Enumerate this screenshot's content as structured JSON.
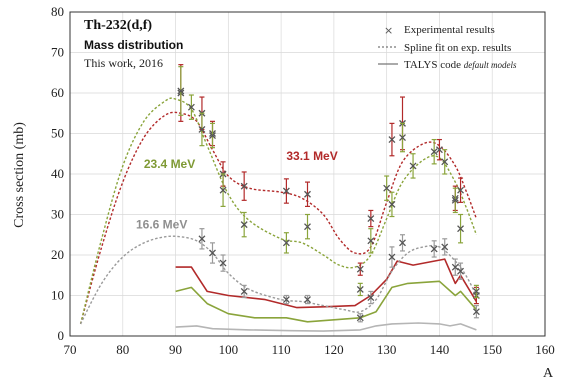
{
  "chart_data": {
    "type": "line",
    "title": "Th-232(d,f)",
    "subtitle": "Mass distribution",
    "note": "This work, 2016",
    "xlabel": "A",
    "ylabel": "Cross section (mb)",
    "xlim": [
      70,
      160
    ],
    "ylim": [
      0,
      80
    ],
    "xticks": [
      70,
      80,
      90,
      100,
      110,
      120,
      130,
      140,
      150,
      160
    ],
    "yticks": [
      0,
      10,
      20,
      30,
      40,
      50,
      60,
      70,
      80
    ],
    "grid": true,
    "legend_position": "top-right",
    "legend": [
      {
        "label": "Experimental results",
        "style": "cross"
      },
      {
        "label": "Spline fit on exp. results",
        "style": "dashed"
      },
      {
        "label": "TALYS code",
        "suffix": "default models",
        "style": "solid"
      }
    ],
    "annotations": [
      {
        "text": "33.1 MeV",
        "x": 111,
        "y": 43.5,
        "color": "#b22a2a"
      },
      {
        "text": "23.4 MeV",
        "x": 84,
        "y": 41.5,
        "color": "#7f9a35"
      },
      {
        "text": "16.6 MeV",
        "x": 82.5,
        "y": 26.5,
        "color": "#8f8f8f"
      }
    ],
    "colors": {
      "red": "#b22a2a",
      "green": "#8aa43b",
      "gray": "#9a9a9a",
      "talys_gray": "#b5b5b5"
    },
    "series": [
      {
        "name": "33.1 MeV",
        "color": "#b22a2a",
        "experimental": [
          [
            91,
            60,
            7
          ],
          [
            95,
            55,
            4
          ],
          [
            97,
            50,
            3
          ],
          [
            99,
            40,
            3
          ],
          [
            103,
            37,
            3.5
          ],
          [
            111,
            35.8,
            3
          ],
          [
            115,
            35,
            3
          ],
          [
            125,
            16.5,
            1.5
          ],
          [
            127,
            29,
            2
          ],
          [
            131,
            48.5,
            4
          ],
          [
            133,
            52.5,
            6.5
          ],
          [
            140,
            46,
            2.5
          ],
          [
            143,
            34,
            3
          ],
          [
            144,
            36,
            3
          ],
          [
            147,
            10,
            2
          ]
        ],
        "spline": [
          [
            72,
            3
          ],
          [
            76,
            22
          ],
          [
            80,
            38
          ],
          [
            84,
            49
          ],
          [
            88,
            54.5
          ],
          [
            91,
            55
          ],
          [
            94,
            53
          ],
          [
            97,
            46
          ],
          [
            100,
            39.5
          ],
          [
            104,
            36.5
          ],
          [
            110,
            35.5
          ],
          [
            114,
            34
          ],
          [
            118,
            30
          ],
          [
            121,
            24
          ],
          [
            124,
            20.5
          ],
          [
            127,
            22
          ],
          [
            130,
            33
          ],
          [
            133,
            43
          ],
          [
            137,
            47.5
          ],
          [
            140,
            47
          ],
          [
            143,
            42
          ],
          [
            145,
            36
          ],
          [
            147,
            29
          ]
        ],
        "talys": [
          [
            90,
            17
          ],
          [
            93,
            17
          ],
          [
            94,
            15
          ],
          [
            96,
            11
          ],
          [
            100,
            10
          ],
          [
            107,
            9
          ],
          [
            113,
            7
          ],
          [
            118,
            7.2
          ],
          [
            124,
            7.5
          ],
          [
            127,
            10
          ],
          [
            130,
            14
          ],
          [
            132,
            18.5
          ],
          [
            135,
            17.5
          ],
          [
            141,
            19
          ],
          [
            143,
            13
          ],
          [
            144,
            15
          ],
          [
            147,
            8.5
          ]
        ]
      },
      {
        "name": "23.4 MeV",
        "color": "#8aa43b",
        "experimental": [
          [
            91,
            60.5,
            6
          ],
          [
            93,
            56.5,
            3
          ],
          [
            95,
            51,
            4
          ],
          [
            97,
            49.5,
            3
          ],
          [
            99,
            36,
            4
          ],
          [
            103,
            27.5,
            3
          ],
          [
            111,
            23,
            2.5
          ],
          [
            115,
            27,
            3
          ],
          [
            125,
            11.5,
            1.5
          ],
          [
            127,
            23.5,
            3
          ],
          [
            130,
            36.5,
            3
          ],
          [
            131,
            32.5,
            3
          ],
          [
            133,
            49,
            3.5
          ],
          [
            135,
            42,
            3
          ],
          [
            139,
            45.5,
            3
          ],
          [
            141,
            43,
            3
          ],
          [
            143,
            33.5,
            3
          ],
          [
            144,
            26.5,
            3.5
          ],
          [
            147,
            11,
            1.5
          ]
        ],
        "spline": [
          [
            72,
            3
          ],
          [
            76,
            24
          ],
          [
            80,
            42
          ],
          [
            84,
            53
          ],
          [
            88,
            58
          ],
          [
            90,
            58.5
          ],
          [
            93,
            56
          ],
          [
            96,
            47
          ],
          [
            100,
            35
          ],
          [
            104,
            28.5
          ],
          [
            110,
            24
          ],
          [
            114,
            23
          ],
          [
            118,
            20
          ],
          [
            121,
            17.5
          ],
          [
            124,
            17
          ],
          [
            127,
            20
          ],
          [
            130,
            29
          ],
          [
            133,
            38
          ],
          [
            137,
            43.5
          ],
          [
            140,
            44
          ],
          [
            143,
            38
          ],
          [
            145,
            32
          ],
          [
            147,
            25
          ]
        ],
        "talys": [
          [
            90,
            11
          ],
          [
            93,
            12
          ],
          [
            96,
            8
          ],
          [
            100,
            5.5
          ],
          [
            105,
            4.5
          ],
          [
            111,
            4.5
          ],
          [
            115,
            3.5
          ],
          [
            120,
            4
          ],
          [
            125,
            4.5
          ],
          [
            128,
            6
          ],
          [
            131,
            12
          ],
          [
            134,
            13
          ],
          [
            140,
            13.5
          ],
          [
            143,
            10
          ],
          [
            144,
            11
          ],
          [
            147,
            6.5
          ]
        ]
      },
      {
        "name": "16.6 MeV",
        "color": "#9a9a9a",
        "experimental": [
          [
            95,
            24,
            2.5
          ],
          [
            97,
            20.5,
            2.5
          ],
          [
            99,
            18,
            2
          ],
          [
            103,
            11,
            1.5
          ],
          [
            111,
            9,
            1
          ],
          [
            115,
            9,
            1
          ],
          [
            125,
            4.5,
            1
          ],
          [
            127,
            9.5,
            1.5
          ],
          [
            131,
            19.5,
            2.5
          ],
          [
            133,
            23,
            2
          ],
          [
            139,
            21.5,
            2
          ],
          [
            141,
            22,
            2
          ],
          [
            143,
            17,
            2
          ],
          [
            144,
            16,
            2
          ],
          [
            147,
            6,
            1.5
          ]
        ],
        "spline": [
          [
            72,
            3
          ],
          [
            76,
            13
          ],
          [
            80,
            19.5
          ],
          [
            84,
            23
          ],
          [
            88,
            24.5
          ],
          [
            91,
            24.5
          ],
          [
            94,
            23.5
          ],
          [
            97,
            20.5
          ],
          [
            100,
            15.5
          ],
          [
            104,
            11.5
          ],
          [
            110,
            9
          ],
          [
            114,
            8.5
          ],
          [
            118,
            7.5
          ],
          [
            122,
            6.5
          ],
          [
            125,
            6
          ],
          [
            128,
            9
          ],
          [
            131,
            16
          ],
          [
            134,
            20.5
          ],
          [
            137,
            22
          ],
          [
            140,
            22
          ],
          [
            143,
            18.5
          ],
          [
            145,
            15
          ],
          [
            147,
            10
          ]
        ],
        "talys": [
          [
            90,
            2.2
          ],
          [
            94,
            2.5
          ],
          [
            97,
            1.8
          ],
          [
            104,
            1.5
          ],
          [
            112,
            1.3
          ],
          [
            118,
            1.2
          ],
          [
            125,
            1.5
          ],
          [
            128,
            2.5
          ],
          [
            131,
            3
          ],
          [
            136,
            3.2
          ],
          [
            140,
            3
          ],
          [
            142,
            2.5
          ],
          [
            144,
            3
          ],
          [
            147,
            1.5
          ]
        ]
      }
    ]
  }
}
